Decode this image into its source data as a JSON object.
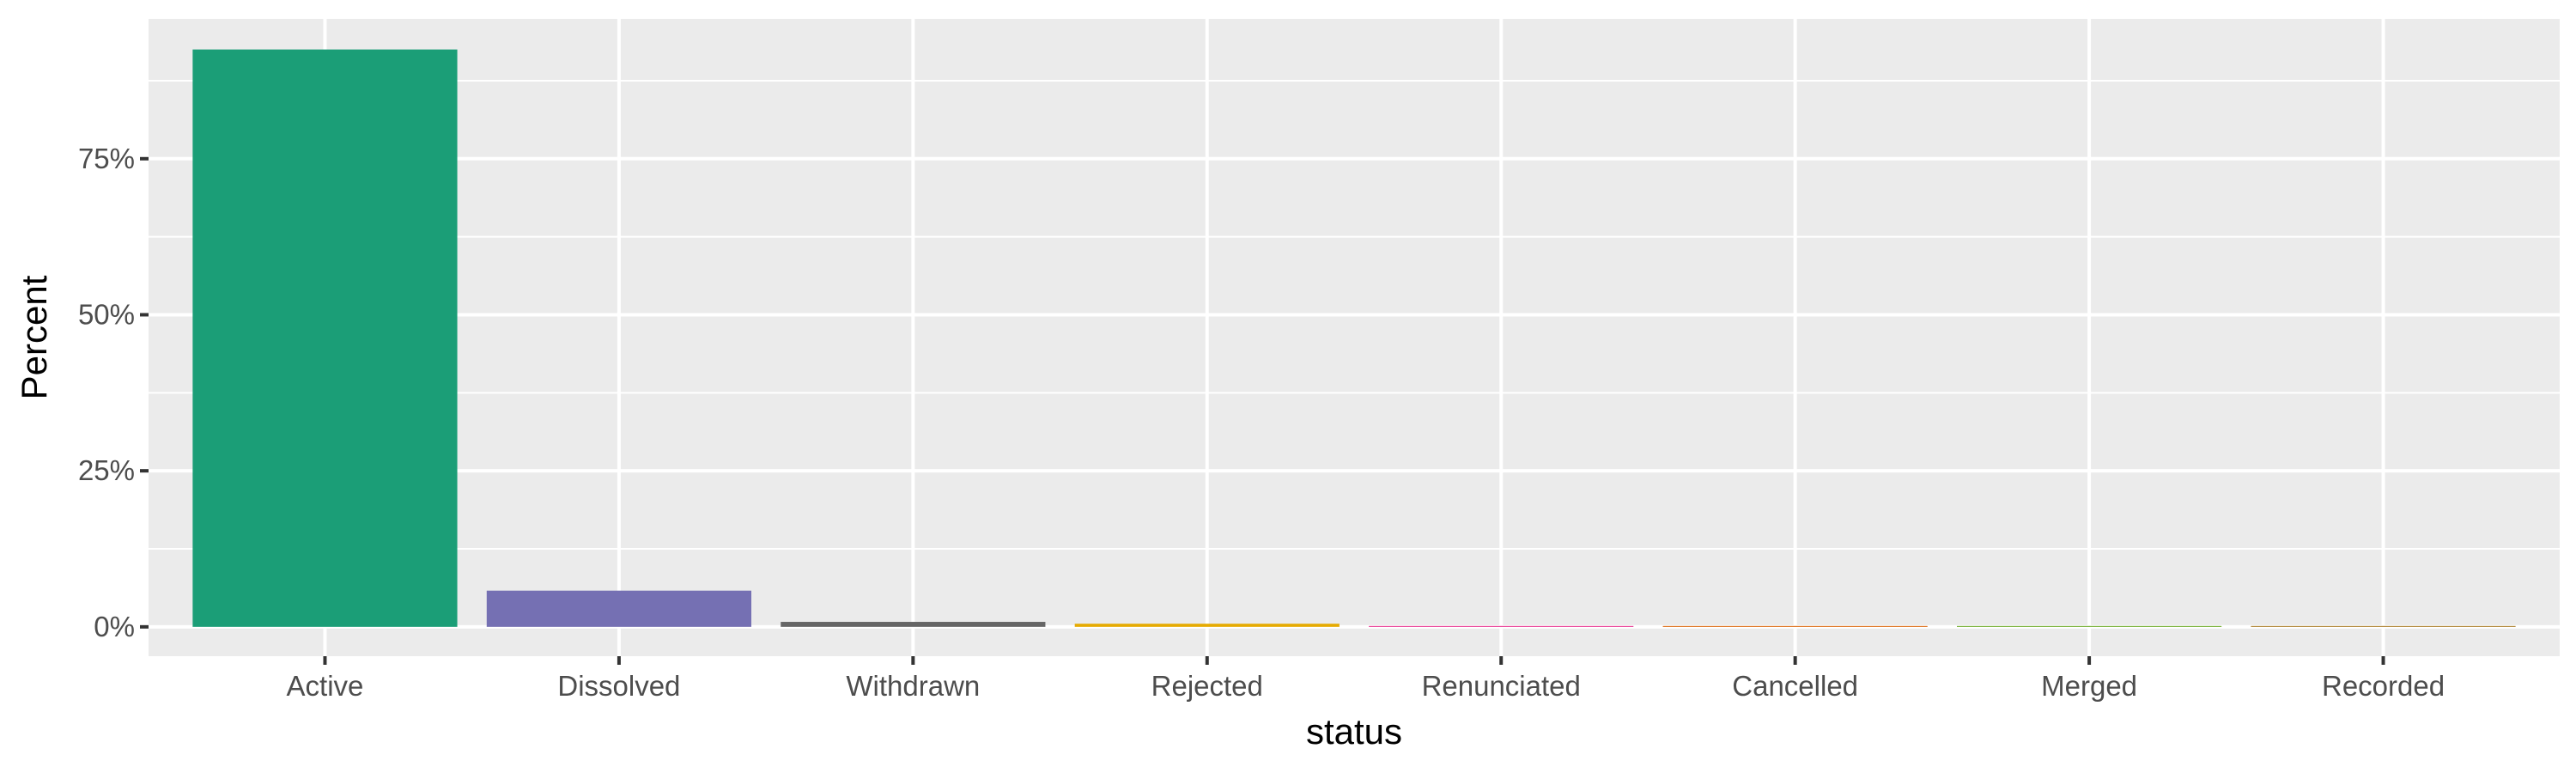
{
  "chart_data": {
    "type": "bar",
    "categories": [
      "Active",
      "Dissolved",
      "Withdrawn",
      "Rejected",
      "Renunciated",
      "Cancelled",
      "Merged",
      "Recorded"
    ],
    "values": [
      92.5,
      5.8,
      0.8,
      0.5,
      0.05,
      0.03,
      0.02,
      0.01
    ],
    "bar_colors": [
      "#1b9e77",
      "#7570b3",
      "#666666",
      "#e6ab02",
      "#e7298a",
      "#d95f02",
      "#66a61e",
      "#a6761d"
    ],
    "xlabel": "status",
    "ylabel": "Percent",
    "ylim": [
      -4.7,
      97.4
    ],
    "yticks": [
      0,
      25,
      50,
      75
    ],
    "ytick_labels": [
      "0%",
      "25%",
      "50%",
      "75%"
    ],
    "grid": true,
    "panel_background": "#ebebeb",
    "grid_color": "#ffffff"
  }
}
